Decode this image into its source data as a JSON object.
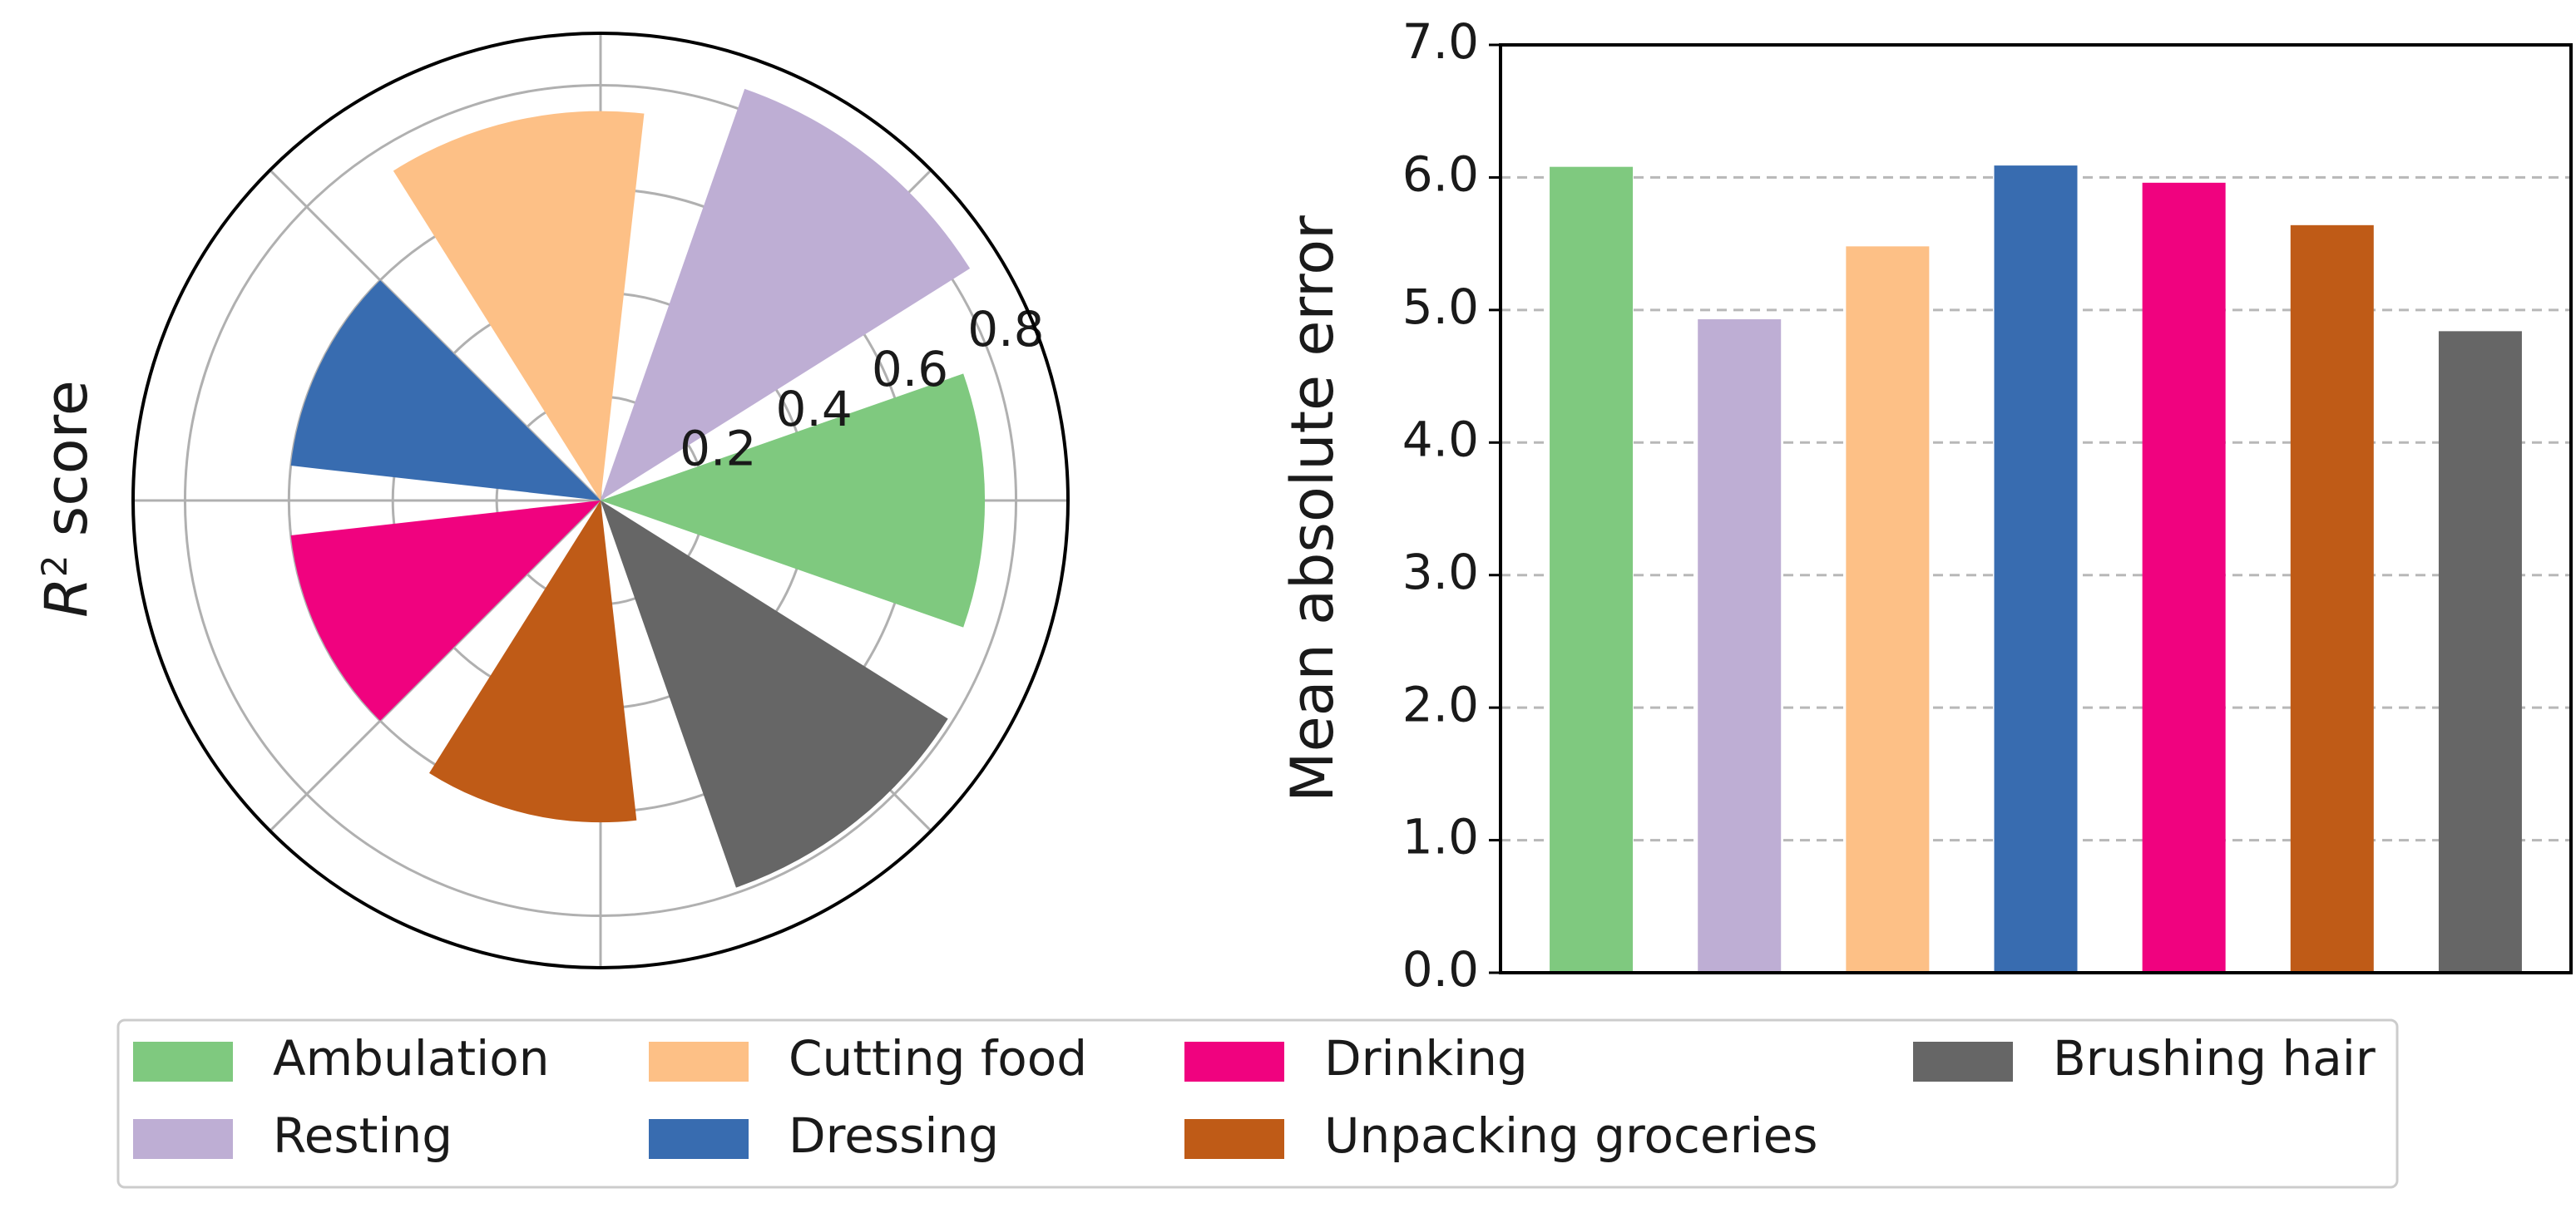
{
  "chart_data": [
    {
      "type": "polar-bar",
      "ylabel": "R² score",
      "ylabel_base": "R",
      "ylabel_sup": "2",
      "ylabel_rest": " score",
      "rlim": [
        0,
        0.9
      ],
      "rticks": [
        0.2,
        0.4,
        0.6,
        0.8
      ],
      "rtick_labels": [
        "0.2",
        "0.4",
        "0.6",
        "0.8"
      ],
      "grid": true,
      "categories": [
        "Ambulation",
        "Resting",
        "Cutting food",
        "Dressing",
        "Drinking",
        "Unpacking groceries",
        "Brushing hair"
      ],
      "values": [
        0.74,
        0.84,
        0.75,
        0.6,
        0.6,
        0.62,
        0.79
      ],
      "colors": [
        "#7fc97f",
        "#beaed4",
        "#fdc086",
        "#386cb0",
        "#f0027f",
        "#bf5b17",
        "#666666"
      ]
    },
    {
      "type": "bar",
      "ylabel": "Mean absolute error",
      "xlabel": "",
      "ylim": [
        0,
        7
      ],
      "yticks": [
        0,
        1,
        2,
        3,
        4,
        5,
        6,
        7
      ],
      "ytick_labels": [
        "0.0",
        "1.0",
        "2.0",
        "3.0",
        "4.0",
        "5.0",
        "6.0",
        "7.0"
      ],
      "grid": "y-dashed",
      "categories": [
        "Ambulation",
        "Resting",
        "Cutting food",
        "Dressing",
        "Drinking",
        "Unpacking groceries",
        "Brushing hair"
      ],
      "values": [
        6.08,
        4.93,
        5.48,
        6.09,
        5.96,
        5.64,
        4.84
      ],
      "colors": [
        "#7fc97f",
        "#beaed4",
        "#fdc086",
        "#386cb0",
        "#f0027f",
        "#bf5b17",
        "#666666"
      ]
    }
  ],
  "legend": {
    "placement": "bottom",
    "columns": [
      [
        "Ambulation",
        "Resting"
      ],
      [
        "Cutting food",
        "Dressing"
      ],
      [
        "Drinking",
        "Unpacking groceries"
      ],
      [
        "Brushing hair"
      ]
    ]
  }
}
